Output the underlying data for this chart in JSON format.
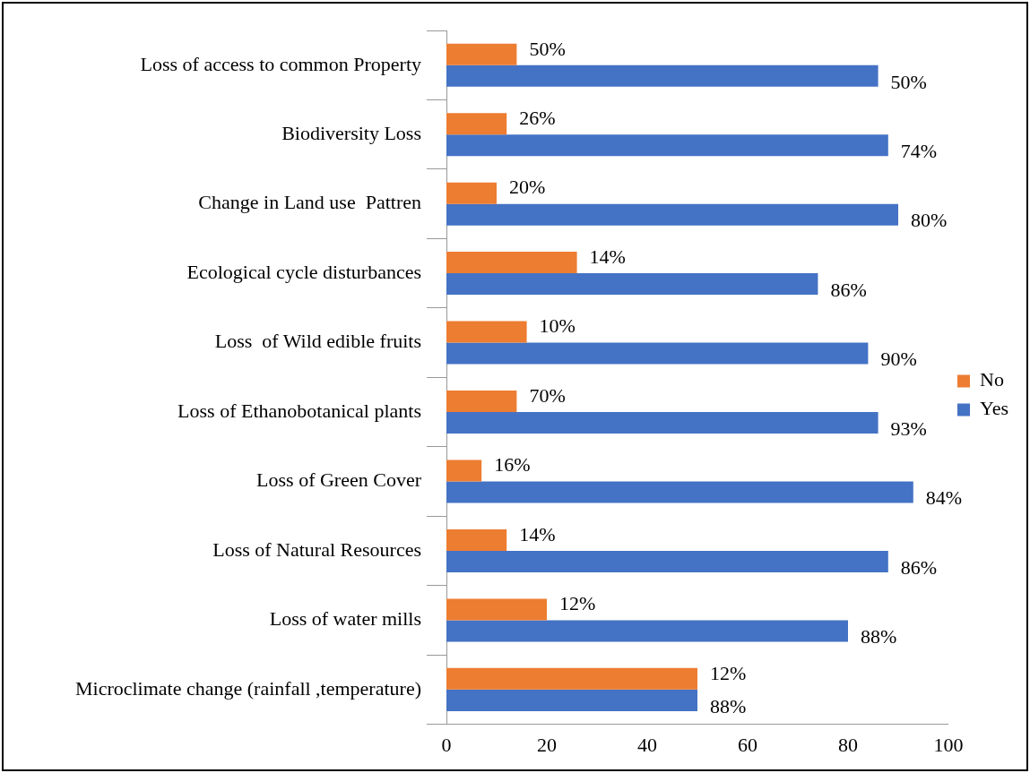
{
  "chart_data": {
    "type": "bar",
    "orientation": "horizontal",
    "categories": [
      "Loss of access to common Property",
      "Biodiversity Loss",
      "Change in Land use  Pattren",
      "Ecological cycle disturbances",
      "Loss  of Wild edible fruits",
      "Loss of Ethanobotanical plants",
      "Loss of Green Cover",
      "Loss of Natural Resources",
      "Loss of water mills",
      "Microclimate change (rainfall ,temperature)"
    ],
    "series": [
      {
        "name": "No",
        "color": "#ed7d31",
        "values": [
          14,
          12,
          10,
          26,
          16,
          14,
          7,
          12,
          20,
          50
        ]
      },
      {
        "name": "Yes",
        "color": "#4472c4",
        "values": [
          86,
          88,
          90,
          74,
          84,
          86,
          93,
          88,
          80,
          50
        ]
      }
    ],
    "annotations": [
      {
        "text": "50%",
        "x": 14,
        "y": "Loss of access to common Property"
      },
      {
        "text": "50%",
        "x": 86,
        "y": "Loss of access to common Property"
      },
      {
        "text": "26%",
        "x": 12,
        "y": "Biodiversity Loss"
      },
      {
        "text": "74%",
        "x": 88,
        "y": "Biodiversity Loss"
      },
      {
        "text": "20%",
        "x": 10,
        "y": "Change in Land use  Pattren"
      },
      {
        "text": "80%",
        "x": 90,
        "y": "Change in Land use  Pattren"
      },
      {
        "text": "14%",
        "x": 26,
        "y": "Ecological cycle disturbances"
      },
      {
        "text": "86%",
        "x": 74,
        "y": "Ecological cycle disturbances"
      },
      {
        "text": "10%",
        "x": 16,
        "y": "Loss  of Wild edible fruits"
      },
      {
        "text": "90%",
        "x": 84,
        "y": "Loss  of Wild edible fruits"
      },
      {
        "text": "70%",
        "x": 14,
        "y": "Loss of Ethanobotanical plants"
      },
      {
        "text": "93%",
        "x": 86,
        "y": "Loss of Ethanobotanical plants"
      },
      {
        "text": "16%",
        "x": 7,
        "y": "Loss of Green Cover"
      },
      {
        "text": "84%",
        "x": 93,
        "y": "Loss of Green Cover"
      },
      {
        "text": "14%",
        "x": 12,
        "y": "Loss of Natural Resources"
      },
      {
        "text": "86%",
        "x": 88,
        "y": "Loss of Natural Resources"
      },
      {
        "text": "12%",
        "x": 20,
        "y": "Loss of water mills"
      },
      {
        "text": "88%",
        "x": 80,
        "y": "Loss of water mills"
      },
      {
        "text": "12%",
        "x": 50,
        "y": "Microclimate change (rainfall ,temperature)"
      },
      {
        "text": "88%",
        "x": 50,
        "y": "Microclimate change (rainfall ,temperature)"
      }
    ],
    "xlim": [
      0,
      100
    ],
    "xticks": [
      0,
      20,
      40,
      60,
      80,
      100
    ],
    "grid": false,
    "legend": "right"
  }
}
